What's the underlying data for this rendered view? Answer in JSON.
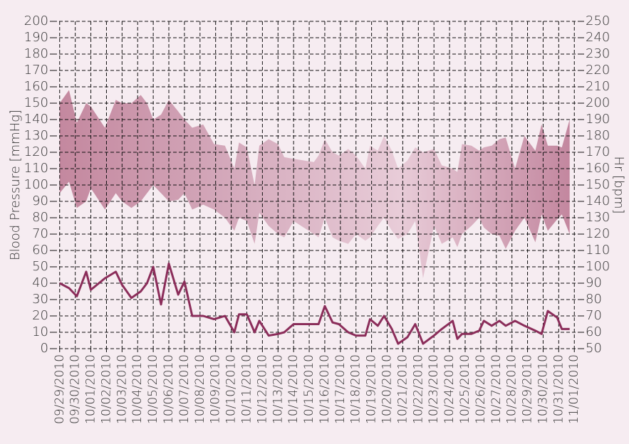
{
  "chart_data": {
    "type": "line",
    "ylabel": "Blood Pressure [mmHg]",
    "y2label": "Hr [bpm]",
    "grid": true,
    "xlim": [
      -0.4,
      33.4
    ],
    "ylim": [
      0,
      200
    ],
    "y2lim": [
      50,
      250
    ],
    "yticks": [
      0,
      10,
      20,
      30,
      40,
      50,
      60,
      70,
      80,
      90,
      100,
      110,
      120,
      130,
      140,
      150,
      160,
      170,
      180,
      190,
      200
    ],
    "y2ticks": [
      50,
      60,
      70,
      80,
      90,
      100,
      110,
      120,
      130,
      140,
      150,
      160,
      170,
      180,
      190,
      200,
      210,
      220,
      230,
      240,
      250
    ],
    "xticks": [
      {
        "value": 0,
        "label": "09/29/2010"
      },
      {
        "value": 1,
        "label": "09/30/2010"
      },
      {
        "value": 2,
        "label": "10/01/2010"
      },
      {
        "value": 3,
        "label": "10/02/2010"
      },
      {
        "value": 4,
        "label": "10/03/2010"
      },
      {
        "value": 5,
        "label": "10/04/2010"
      },
      {
        "value": 6,
        "label": "10/05/2010"
      },
      {
        "value": 7,
        "label": "10/06/2010"
      },
      {
        "value": 8,
        "label": "10/07/2010"
      },
      {
        "value": 9,
        "label": "10/08/2010"
      },
      {
        "value": 10,
        "label": "10/09/2010"
      },
      {
        "value": 11,
        "label": "10/10/2010"
      },
      {
        "value": 12,
        "label": "10/11/2010"
      },
      {
        "value": 13,
        "label": "10/12/2010"
      },
      {
        "value": 14,
        "label": "10/13/2010"
      },
      {
        "value": 15,
        "label": "10/14/2010"
      },
      {
        "value": 16,
        "label": "10/15/2010"
      },
      {
        "value": 17,
        "label": "10/16/2010"
      },
      {
        "value": 18,
        "label": "10/17/2010"
      },
      {
        "value": 19,
        "label": "10/18/2010"
      },
      {
        "value": 20,
        "label": "10/19/2010"
      },
      {
        "value": 21,
        "label": "10/20/2010"
      },
      {
        "value": 22,
        "label": "10/21/2010"
      },
      {
        "value": 23,
        "label": "10/22/2010"
      },
      {
        "value": 24,
        "label": "10/23/2010"
      },
      {
        "value": 25,
        "label": "10/24/2010"
      },
      {
        "value": 26,
        "label": "10/25/2010"
      },
      {
        "value": 27,
        "label": "10/26/2010"
      },
      {
        "value": 28,
        "label": "10/27/2010"
      },
      {
        "value": 29,
        "label": "10/28/2010"
      },
      {
        "value": 30,
        "label": "10/29/2010"
      },
      {
        "value": 31,
        "label": "10/30/2010"
      },
      {
        "value": 32,
        "label": "10/31/2010"
      },
      {
        "value": 33,
        "label": "11/01/2010"
      }
    ],
    "x": [
      0,
      0.6,
      1.1,
      1.7,
      2.0,
      2.9,
      3.6,
      4.0,
      4.6,
      5.2,
      5.6,
      6.0,
      6.5,
      7.0,
      7.6,
      8.0,
      8.5,
      9.2,
      9.9,
      10.6,
      11.2,
      11.5,
      12.0,
      12.5,
      12.8,
      13.4,
      14.0,
      14.4,
      15.0,
      16.3,
      16.6,
      17.0,
      17.5,
      17.9,
      18.5,
      19.0,
      19.6,
      19.9,
      20.4,
      20.8,
      21.3,
      21.7,
      22.3,
      22.8,
      23.3,
      24.0,
      24.5,
      25.2,
      25.5,
      25.8,
      26.4,
      26.9,
      27.2,
      27.7,
      28.2,
      28.6,
      29.2,
      29.8,
      30.5,
      30.9,
      31.3,
      31.9,
      32.2,
      32.7
    ],
    "band": {
      "colors": [
        "#c4889f",
        "#d4a9bb",
        "#e8ccd8",
        "#c3879f"
      ],
      "upper": [
        150,
        158,
        138,
        150,
        148,
        135,
        152,
        150,
        150,
        155,
        150,
        140,
        143,
        152,
        145,
        140,
        135,
        137,
        125,
        124,
        110,
        126,
        123,
        100,
        124,
        128,
        125,
        117,
        116,
        114,
        118,
        128,
        120,
        118,
        122,
        118,
        110,
        124,
        121,
        130,
        121,
        110,
        115,
        123,
        120,
        122,
        112,
        110,
        108,
        125,
        124,
        121,
        123,
        124,
        128,
        129,
        110,
        130,
        121,
        137,
        124,
        124,
        123,
        140
      ],
      "lower": [
        95,
        102,
        86,
        90,
        98,
        85,
        95,
        90,
        86,
        90,
        95,
        100,
        95,
        90,
        91,
        95,
        85,
        88,
        85,
        80,
        72,
        80,
        78,
        64,
        83,
        75,
        70,
        68,
        78,
        70,
        68,
        80,
        68,
        66,
        64,
        70,
        66,
        68,
        75,
        80,
        72,
        67,
        70,
        78,
        43,
        75,
        64,
        68,
        62,
        70,
        75,
        80,
        74,
        70,
        69,
        61,
        72,
        80,
        65,
        82,
        72,
        79,
        82,
        70
      ]
    },
    "series": [
      {
        "color": "#8b2d5a",
        "axis": "y2",
        "values": [
          90,
          87,
          82,
          97,
          86,
          93,
          97,
          89,
          81,
          85,
          90,
          100,
          77,
          102,
          83,
          91,
          70,
          70,
          68,
          70,
          60,
          71,
          71,
          60,
          67,
          58,
          59,
          60,
          65,
          65,
          65,
          76,
          66,
          65,
          60,
          58,
          58,
          68,
          64,
          70,
          62,
          53,
          57,
          65,
          53,
          58,
          62,
          67,
          56,
          59,
          59,
          61,
          67,
          64,
          67,
          64,
          67,
          64,
          61,
          59,
          73,
          69,
          62,
          62
        ]
      }
    ]
  }
}
